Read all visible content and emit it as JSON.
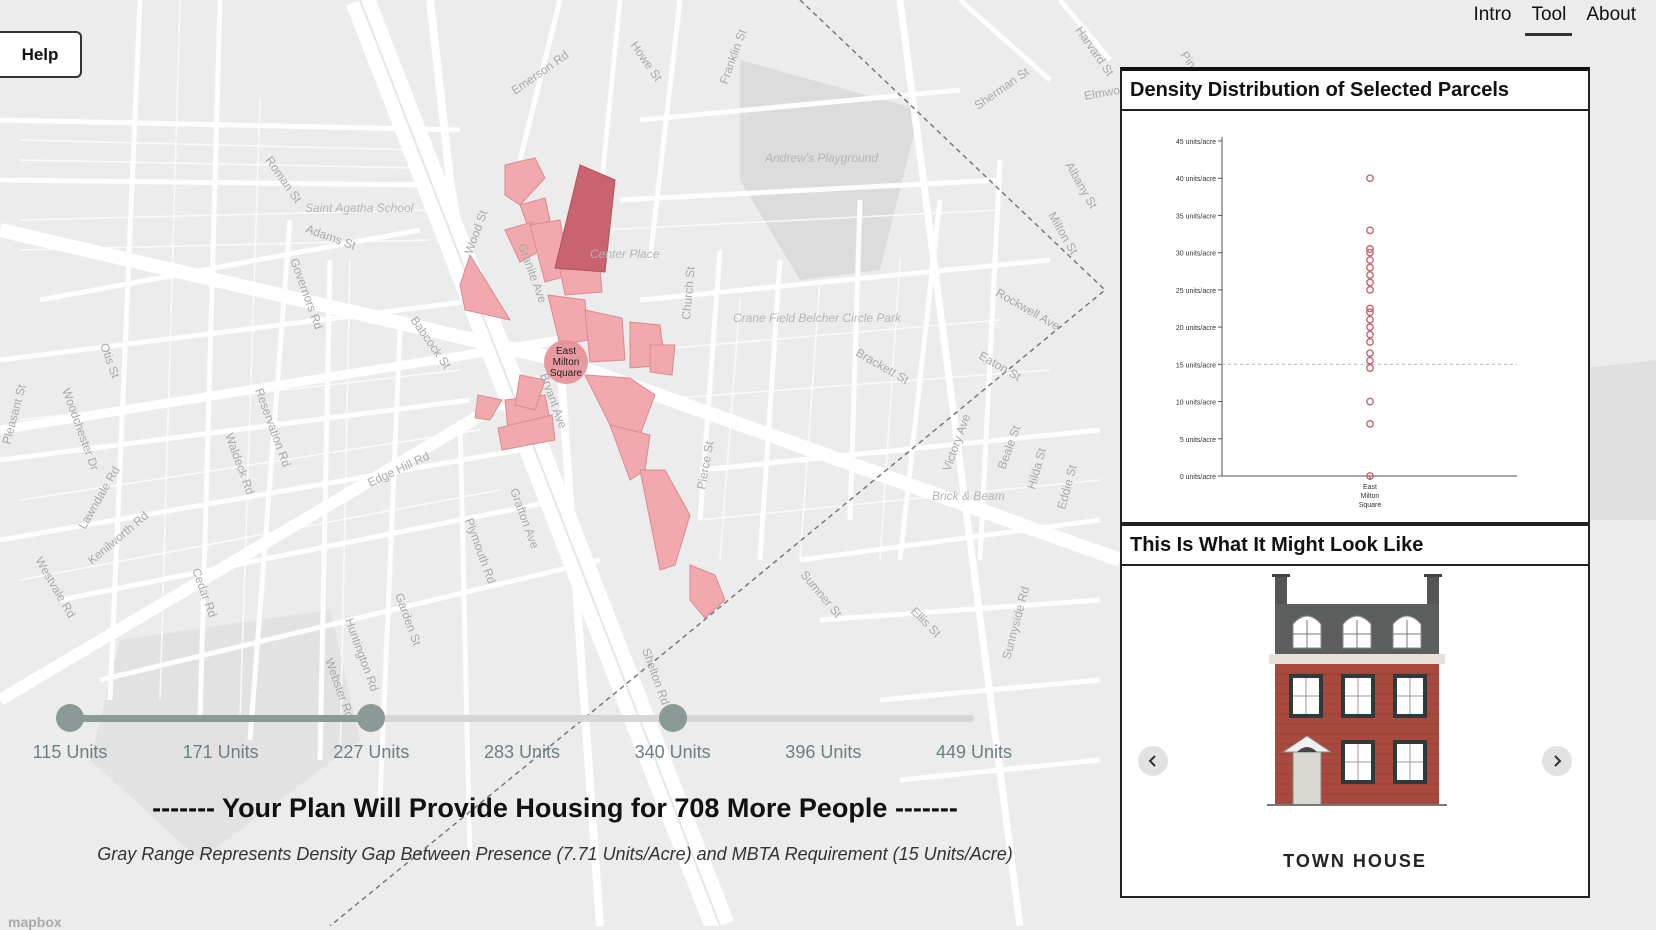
{
  "help": {
    "label": "Help"
  },
  "nav": {
    "items": [
      {
        "label": "Intro"
      },
      {
        "label": "Tool",
        "active": true
      },
      {
        "label": "About"
      }
    ]
  },
  "map": {
    "station_label": [
      "East",
      "Milton",
      "Square"
    ],
    "streets": [
      "Wood St",
      "Granite Ave",
      "Adams St",
      "Church St",
      "Edge Hill Rd",
      "Bryant Ave",
      "Pierce St",
      "Brackett St",
      "Eaton St",
      "Victory Ave",
      "Beale St",
      "Sumner St",
      "Otis St",
      "Governors Rd",
      "Plymouth Rd",
      "Rockwell Ave",
      "Albany St",
      "Milton St",
      "Sherman St",
      "Emerson Rd",
      "Franklin St",
      "Howe St",
      "Pleasant St",
      "Woodchester Dr",
      "Waldeck Rd",
      "Lawndale Rd",
      "Kenilworth Rd",
      "Westvale Rd",
      "Cedar Rd",
      "Huntington Rd",
      "Webster Rd",
      "Garden St",
      "Grafton Ave",
      "Shelton Rd",
      "Hilda St",
      "Eddie St",
      "Ellis St",
      "Sunnyside Rd",
      "Pine St",
      "Harvard St",
      "Roman St",
      "Reservation Rd",
      "Babcock St",
      "Elmwood Ave"
    ],
    "places": [
      "Saint Agatha School",
      "Andrew's Playground",
      "Crane Field Belcher Circle Park",
      "Brick & Beam",
      "Center Place"
    ],
    "colors": {
      "parcel": "#f1a9ad",
      "parcel_selected": "#c9636d",
      "parcel_stroke": "#d98a91",
      "road": "#ffffff",
      "land": "#ececec"
    }
  },
  "density_panel": {
    "title": "Density Distribution of Selected Parcels",
    "chart_data": {
      "type": "scatter",
      "x_categories": [
        "East Milton Square"
      ],
      "y_ticks": [
        0,
        5,
        10,
        15,
        20,
        25,
        30,
        35,
        40,
        45
      ],
      "y_tick_labels": [
        "0 units/acre",
        "5 units/acre",
        "10 units/acre",
        "15 units/acre",
        "20 units/acre",
        "25 units/acre",
        "30 units/acre",
        "35 units/acre",
        "40 units/acre",
        "45 units/acre"
      ],
      "ylim": [
        0,
        45
      ],
      "reference_line": 15,
      "points": [
        {
          "x": "East Milton Square",
          "y": 40
        },
        {
          "x": "East Milton Square",
          "y": 33
        },
        {
          "x": "East Milton Square",
          "y": 30.5
        },
        {
          "x": "East Milton Square",
          "y": 30
        },
        {
          "x": "East Milton Square",
          "y": 29
        },
        {
          "x": "East Milton Square",
          "y": 28
        },
        {
          "x": "East Milton Square",
          "y": 27
        },
        {
          "x": "East Milton Square",
          "y": 26
        },
        {
          "x": "East Milton Square",
          "y": 25
        },
        {
          "x": "East Milton Square",
          "y": 22.5
        },
        {
          "x": "East Milton Square",
          "y": 22
        },
        {
          "x": "East Milton Square",
          "y": 21
        },
        {
          "x": "East Milton Square",
          "y": 20
        },
        {
          "x": "East Milton Square",
          "y": 19
        },
        {
          "x": "East Milton Square",
          "y": 18
        },
        {
          "x": "East Milton Square",
          "y": 16.5
        },
        {
          "x": "East Milton Square",
          "y": 15.5
        },
        {
          "x": "East Milton Square",
          "y": 14.5
        },
        {
          "x": "East Milton Square",
          "y": 10
        },
        {
          "x": "East Milton Square",
          "y": 7
        },
        {
          "x": "East Milton Square",
          "y": 0
        }
      ],
      "point_color": "#c9636d"
    }
  },
  "look_panel": {
    "title": "This Is What It Might Look Like",
    "house_name": "TOWN HOUSE"
  },
  "slider": {
    "labels": [
      "115 Units",
      "171 Units",
      "227 Units",
      "283 Units",
      "340 Units",
      "396 Units",
      "449 Units"
    ],
    "selected_index": 2,
    "marker_index": 4
  },
  "plan_text": "------- Your Plan Will Provide Housing for 708 More People -------",
  "gray_note": "Gray Range Represents Density Gap Between Presence (7.71 Units/Acre) and MBTA Requirement (15 Units/Acre)",
  "mapbox": "mapbox"
}
